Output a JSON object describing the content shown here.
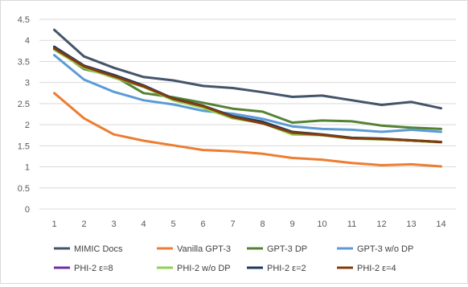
{
  "chart_data": {
    "type": "line",
    "title": "",
    "xlabel": "",
    "ylabel": "",
    "categories": [
      "1",
      "2",
      "3",
      "4",
      "5",
      "6",
      "7",
      "8",
      "9",
      "10",
      "11",
      "12",
      "13",
      "14"
    ],
    "ylim": [
      0,
      4.5
    ],
    "yticks": [
      "0",
      "0.5",
      "1",
      "1.5",
      "2",
      "2.5",
      "3",
      "3.5",
      "4",
      "4.5"
    ],
    "grid": true,
    "legend_position": "bottom",
    "series": [
      {
        "name": "MIMIC Docs",
        "color": "#44546A",
        "values": [
          4.25,
          3.62,
          3.35,
          3.13,
          3.05,
          2.92,
          2.87,
          2.77,
          2.66,
          2.69,
          2.58,
          2.47,
          2.54,
          2.39
        ]
      },
      {
        "name": "Vanilla GPT-3",
        "color": "#ED7D31",
        "values": [
          2.75,
          2.15,
          1.77,
          1.62,
          1.51,
          1.4,
          1.37,
          1.31,
          1.21,
          1.17,
          1.09,
          1.04,
          1.06,
          1.01
        ]
      },
      {
        "name": "GPT-3 DP",
        "color": "#548235",
        "values": [
          3.82,
          3.32,
          3.16,
          2.75,
          2.65,
          2.52,
          2.38,
          2.31,
          2.05,
          2.1,
          2.08,
          1.98,
          1.93,
          1.9
        ]
      },
      {
        "name": "GPT-3 w/o DP",
        "color": "#5B9BD5",
        "values": [
          3.65,
          3.07,
          2.78,
          2.58,
          2.48,
          2.33,
          2.26,
          2.14,
          1.96,
          1.9,
          1.88,
          1.83,
          1.88,
          1.83
        ]
      },
      {
        "name": "PHI-2 ε=8",
        "color": "#7030A0",
        "values": [
          3.8,
          3.37,
          3.12,
          2.9,
          2.6,
          2.43,
          2.17,
          2.05,
          1.8,
          1.75,
          1.68,
          1.66,
          1.62,
          1.59
        ]
      },
      {
        "name": "PHI-2 w/o DP",
        "color": "#92D050",
        "values": [
          3.78,
          3.35,
          3.12,
          2.9,
          2.58,
          2.4,
          2.15,
          2.04,
          1.77,
          1.75,
          1.67,
          1.65,
          1.62,
          1.58
        ]
      },
      {
        "name": "PHI-2 ε=2",
        "color": "#1F3864",
        "values": [
          3.85,
          3.4,
          3.18,
          2.93,
          2.62,
          2.45,
          2.2,
          2.07,
          1.83,
          1.77,
          1.69,
          1.67,
          1.63,
          1.59
        ]
      },
      {
        "name": "PHI-2 ε=4",
        "color": "#843C0C",
        "values": [
          3.81,
          3.38,
          3.15,
          2.91,
          2.61,
          2.44,
          2.18,
          2.03,
          1.81,
          1.76,
          1.68,
          1.66,
          1.63,
          1.59
        ]
      }
    ]
  }
}
